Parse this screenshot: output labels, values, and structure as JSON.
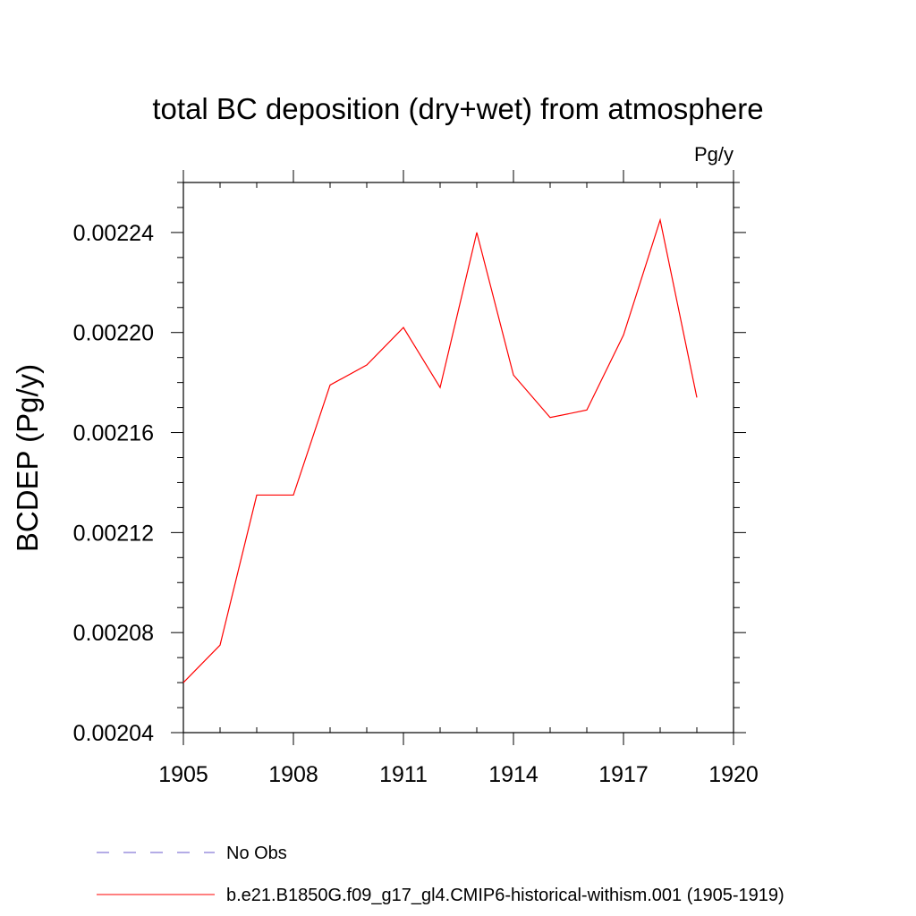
{
  "chart_data": {
    "type": "line",
    "title": "total BC deposition (dry+wet) from atmosphere",
    "units_label": "Pg/y",
    "ylabel": "BCDEP  (Pg/y)",
    "xlabel": "",
    "xlim": [
      1905,
      1920
    ],
    "ylim": [
      0.00204,
      0.00226
    ],
    "x_ticks": [
      1905,
      1908,
      1911,
      1914,
      1917,
      1920
    ],
    "x_tick_labels": [
      "1905",
      "1908",
      "1911",
      "1914",
      "1917",
      "1920"
    ],
    "y_ticks": [
      0.00204,
      0.00208,
      0.00212,
      0.00216,
      0.0022,
      0.00224
    ],
    "y_tick_labels": [
      "0.00204",
      "0.00208",
      "0.00212",
      "0.00216",
      "0.00220",
      "0.00224"
    ],
    "grid": false,
    "legend_position": "bottom-left",
    "series": [
      {
        "name": "No Obs",
        "color": "#6a5acd",
        "style": "dashed",
        "x": [],
        "y": []
      },
      {
        "name": "b.e21.B1850G.f09_g17_gl4.CMIP6-historical-withism.001 (1905-1919)",
        "color": "#ff0000",
        "style": "solid",
        "x": [
          1905,
          1906,
          1907,
          1908,
          1909,
          1910,
          1911,
          1912,
          1913,
          1914,
          1915,
          1916,
          1917,
          1918,
          1919
        ],
        "y": [
          0.00206,
          0.002075,
          0.002135,
          0.002135,
          0.002179,
          0.002187,
          0.002202,
          0.002178,
          0.00224,
          0.002183,
          0.002166,
          0.002169,
          0.002199,
          0.002245,
          0.002174
        ]
      }
    ]
  }
}
